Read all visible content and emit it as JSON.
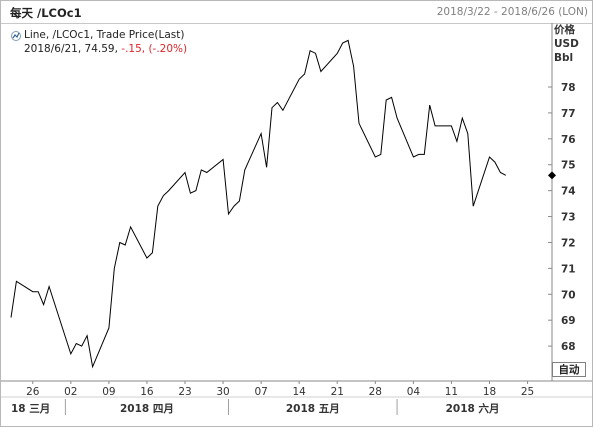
{
  "header": {
    "title": "每天 /LCOc1",
    "date_range": "2018/3/22 - 2018/6/26 (LON)"
  },
  "legend": {
    "line1": "Line, /LCOc1, Trade Price(Last)",
    "date": "2018/6/21,",
    "last": "74.59,",
    "change": "-.15,",
    "change_pct": "(-.20%)"
  },
  "axis": {
    "unit_lines": [
      "价格",
      "USD",
      "Bbl"
    ],
    "auto_button": "自动"
  },
  "colors": {
    "line": "#000000",
    "negative": "#e0252b",
    "marker": "#000000"
  },
  "chart_data": {
    "type": "line",
    "series": [
      {
        "x": [
          "2018-03-22",
          "2018-03-23",
          "2018-03-26",
          "2018-03-27",
          "2018-03-28",
          "2018-03-29",
          "2018-04-02",
          "2018-04-03",
          "2018-04-04",
          "2018-04-05",
          "2018-04-06",
          "2018-04-09",
          "2018-04-10",
          "2018-04-11",
          "2018-04-12",
          "2018-04-13",
          "2018-04-16",
          "2018-04-17",
          "2018-04-18",
          "2018-04-19",
          "2018-04-20",
          "2018-04-23",
          "2018-04-24",
          "2018-04-25",
          "2018-04-26",
          "2018-04-27",
          "2018-04-30",
          "2018-05-01",
          "2018-05-02",
          "2018-05-03",
          "2018-05-04",
          "2018-05-07",
          "2018-05-08",
          "2018-05-09",
          "2018-05-10",
          "2018-05-11",
          "2018-05-14",
          "2018-05-15",
          "2018-05-16",
          "2018-05-17",
          "2018-05-18",
          "2018-05-21",
          "2018-05-22",
          "2018-05-23",
          "2018-05-24",
          "2018-05-25",
          "2018-05-28",
          "2018-05-29",
          "2018-05-30",
          "2018-05-31",
          "2018-06-01",
          "2018-06-04",
          "2018-06-05",
          "2018-06-06",
          "2018-06-07",
          "2018-06-08",
          "2018-06-11",
          "2018-06-12",
          "2018-06-13",
          "2018-06-14",
          "2018-06-15",
          "2018-06-18",
          "2018-06-19",
          "2018-06-20",
          "2018-06-21"
        ],
        "y": [
          69.1,
          70.5,
          70.1,
          70.1,
          69.6,
          70.3,
          67.7,
          68.1,
          68.0,
          68.4,
          67.2,
          68.7,
          71.0,
          72.0,
          71.9,
          72.6,
          71.4,
          71.6,
          73.4,
          73.8,
          74.0,
          74.7,
          73.9,
          74.0,
          74.8,
          74.7,
          75.2,
          73.1,
          73.4,
          73.6,
          74.8,
          76.2,
          74.9,
          77.2,
          77.4,
          77.1,
          78.3,
          78.5,
          79.4,
          79.3,
          78.6,
          79.3,
          79.7,
          79.8,
          78.8,
          76.6,
          75.3,
          75.4,
          77.5,
          77.6,
          76.8,
          75.3,
          75.4,
          75.4,
          77.3,
          76.5,
          76.5,
          75.9,
          76.8,
          76.2,
          73.4,
          75.3,
          75.1,
          74.7,
          74.59
        ]
      }
    ],
    "ylim": [
      67,
      80.2
    ],
    "yticks": [
      68,
      69,
      70,
      71,
      72,
      73,
      74,
      75,
      76,
      77,
      78
    ],
    "xlim": [
      "2018-03-22",
      "2018-06-26"
    ],
    "xticks": [
      {
        "date": "2018-03-26",
        "label": "26"
      },
      {
        "date": "2018-04-02",
        "label": "02"
      },
      {
        "date": "2018-04-09",
        "label": "09"
      },
      {
        "date": "2018-04-16",
        "label": "16"
      },
      {
        "date": "2018-04-23",
        "label": "23"
      },
      {
        "date": "2018-04-30",
        "label": "30"
      },
      {
        "date": "2018-05-07",
        "label": "07"
      },
      {
        "date": "2018-05-14",
        "label": "14"
      },
      {
        "date": "2018-05-21",
        "label": "21"
      },
      {
        "date": "2018-05-28",
        "label": "28"
      },
      {
        "date": "2018-06-04",
        "label": "04"
      },
      {
        "date": "2018-06-11",
        "label": "11"
      },
      {
        "date": "2018-06-18",
        "label": "18"
      },
      {
        "date": "2018-06-25",
        "label": "25"
      }
    ],
    "month_labels": [
      {
        "date": "2018-03-22",
        "label": "18 三月"
      },
      {
        "date": "2018-04-01",
        "label": "2018 四月"
      },
      {
        "date": "2018-05-01",
        "label": "2018 五月"
      },
      {
        "date": "2018-06-01",
        "label": "2018 六月"
      }
    ],
    "last_value": 74.59,
    "grid": false
  }
}
